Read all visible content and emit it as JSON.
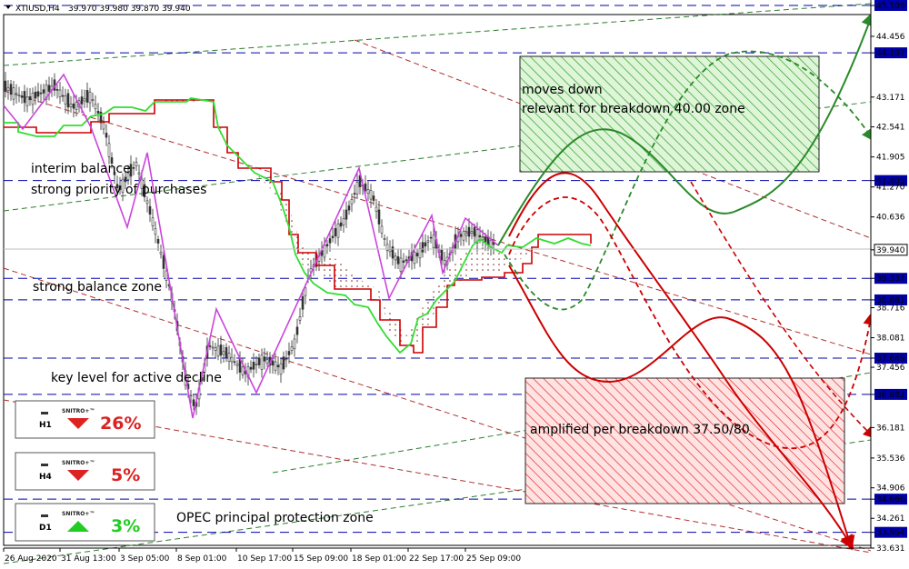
{
  "header": {
    "symbol": "XTIUSD,H4",
    "ohlc": "39.970 39.980 39.870 39.940"
  },
  "colors": {
    "bull_line": "#2a8a2a",
    "bear_line": "#cc0000",
    "lime": "#33dd33",
    "kijun": "#cc0000",
    "zigzag": "#cc44dd",
    "level": "#0000aa",
    "channel": "#b03030",
    "channel_green": "#2e7d2e",
    "current_bg": "#ffffff",
    "level_bg": "#0000aa",
    "up_arrow": "#22cc22",
    "down_arrow": "#dd2222"
  },
  "chart_data": {
    "type": "candlestick",
    "y_range": [
      33.631,
      45.109
    ],
    "y_ticks": [
      "45.109",
      "44.456",
      "44.107",
      "43.171",
      "42.541",
      "41.905",
      "41.405",
      "41.270",
      "40.636",
      "39.940",
      "39.337",
      "38.881",
      "38.716",
      "38.081",
      "37.649",
      "37.456",
      "36.882",
      "36.181",
      "35.536",
      "34.906",
      "34.666",
      "34.261",
      "33.964",
      "33.631"
    ],
    "highlighted_levels": [
      "45.109",
      "44.107",
      "41.405",
      "39.337",
      "38.881",
      "37.649",
      "36.882",
      "34.666",
      "33.964"
    ],
    "current_price": "39.940",
    "x_ticks": [
      "26 Aug 2020",
      "31 Aug 13:00",
      "3 Sep 05:00",
      "8 Sep 01:00",
      "10 Sep 17:00",
      "15 Sep 09:00",
      "18 Sep 01:00",
      "22 Sep 17:00",
      "25 Sep 09:00"
    ],
    "zones": [
      {
        "name": "upper",
        "label_lines": [
          "moves down",
          "relevant for breakdown 40.00 zone"
        ],
        "y_top": 44.107,
        "y_bottom": 41.6,
        "color": "green"
      },
      {
        "name": "lower",
        "label_lines": [
          "amplified per breakdown 37.50/80"
        ],
        "y_top": 37.35,
        "y_bottom": 34.55,
        "color": "red"
      }
    ]
  },
  "annotations": {
    "interim": [
      "interim balance",
      "strong priority of purchases"
    ],
    "balance": "strong balance zone",
    "key_level": "key level for active decline",
    "opec": "OPEC principal protection zone"
  },
  "badges": [
    {
      "tf": "H1",
      "brand": "SNITRO+™",
      "direction": "down",
      "pct": "26%"
    },
    {
      "tf": "H4",
      "brand": "SNITRO+™",
      "direction": "down",
      "pct": "5%"
    },
    {
      "tf": "D1",
      "brand": "SNITRO+™",
      "direction": "up",
      "pct": "3%"
    }
  ]
}
